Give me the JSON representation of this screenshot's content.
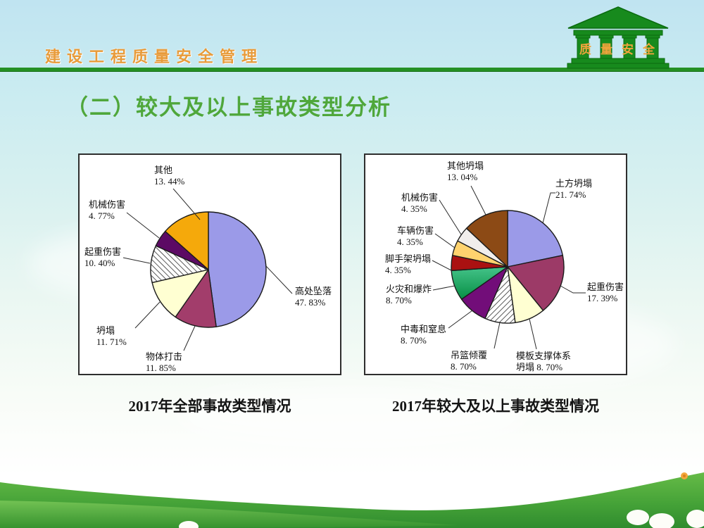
{
  "header": {
    "title": "建设工程质量安全管理",
    "logo": {
      "text": "质量安全"
    }
  },
  "slide": {
    "title": "（二）较大及以上事故类型分析"
  },
  "colors": {
    "header_text": "#e89b3a",
    "rule_green": "#259025",
    "title_green": "#4fa73b",
    "panel_border": "#2e2e2e",
    "sky_top": "#c0e4f1",
    "grass_green": "#46a338"
  },
  "chart_data": [
    {
      "type": "pie",
      "title": "2017年全部事故类型情况",
      "start_angle_deg": 0,
      "direction": "clockwise",
      "legend_position": "callout-labels",
      "center": [
        183,
        163
      ],
      "radius": 82,
      "slices": [
        {
          "label": "高处坠落",
          "value": 47.83,
          "pct_text": "47. 83%",
          "fill": "#9b9ae8",
          "label_pos": [
            306,
            186
          ],
          "line": [
            [
              264,
              157
            ],
            [
              302,
              197
            ]
          ]
        },
        {
          "label": "物体打击",
          "value": 11.85,
          "pct_text": "11. 85%",
          "fill": "#a23d6b",
          "label_pos": [
            94,
            279
          ],
          "line": [
            [
              164,
              243
            ],
            [
              148,
              278
            ]
          ]
        },
        {
          "label": "坍塌",
          "value": 11.71,
          "pct_text": "11. 71%",
          "fill": "#ffffd2",
          "label_pos": [
            24,
            242
          ],
          "line": [
            [
              114,
              209
            ],
            [
              79,
              246
            ]
          ]
        },
        {
          "label": "起重伤害",
          "value": 10.4,
          "pct_text": "10. 40%",
          "fill": "hatch-down",
          "label_pos": [
            7,
            130
          ],
          "line": [
            [
              100,
              154
            ],
            [
              62,
              146
            ]
          ]
        },
        {
          "label": "机械伤害",
          "value": 4.77,
          "pct_text": "4. 77%",
          "fill": "#5c0a64",
          "label_pos": [
            13,
            63
          ],
          "line": [
            [
              113,
              118
            ],
            [
              67,
              82
            ]
          ]
        },
        {
          "label": "其他",
          "value": 13.44,
          "pct_text": "13. 44%",
          "fill": "#f5a90b",
          "label_pos": [
            106,
            14
          ],
          "line": [
            [
              171,
              92
            ],
            [
              133,
              48
            ]
          ]
        }
      ]
    },
    {
      "type": "pie",
      "title": "2017年较大及以上事故类型情况",
      "start_angle_deg": 0,
      "direction": "clockwise",
      "legend_position": "callout-labels",
      "center": [
        202,
        159
      ],
      "radius": 80,
      "slices": [
        {
          "label": "土方坍塌",
          "value": 21.74,
          "pct_text": "21. 74%",
          "fill": "#9b9ae8",
          "label_pos": [
            270,
            33
          ],
          "line": [
            [
              252,
              97
            ],
            [
              263,
              54
            ],
            [
              270,
              54
            ]
          ]
        },
        {
          "label": "起重伤害",
          "value": 17.39,
          "pct_text": "17. 39%",
          "fill": "#9c3a67",
          "label_pos": [
            315,
            180
          ],
          "line": [
            [
              277,
              186
            ],
            [
              295,
              196
            ],
            [
              313,
              196
            ]
          ]
        },
        {
          "label": "模板支撑体系坍塌",
          "value": 8.7,
          "pct_text": "8. 70%",
          "label_lines": [
            "模板支撑体系",
            "坍塌 8. 70%"
          ],
          "fill": "#ffffd2",
          "label_pos": [
            214,
            278
          ],
          "line": [
            [
              233,
              233
            ],
            [
              243,
              276
            ]
          ]
        },
        {
          "label": "吊篮倾覆",
          "value": 8.7,
          "pct_text": "8. 70%",
          "fill": "hatch-up",
          "label_pos": [
            121,
            277
          ],
          "line": [
            [
              191,
              238
            ],
            [
              183,
              275
            ]
          ]
        },
        {
          "label": "中毒和窒息",
          "value": 8.7,
          "pct_text": "8. 70%",
          "fill": "#720d79",
          "label_pos": [
            50,
            240
          ],
          "line": [
            [
              152,
              221
            ],
            [
              118,
              246
            ]
          ]
        },
        {
          "label": "火灾和爆炸",
          "value": 8.7,
          "pct_text": "8. 70%",
          "fill": "green-grad",
          "label_pos": [
            29,
            183
          ],
          "line": [
            [
              127,
              186
            ],
            [
              96,
              192
            ]
          ]
        },
        {
          "label": "脚手架坍塌",
          "value": 4.35,
          "pct_text": "4. 35%",
          "fill": "#aa1111",
          "label_pos": [
            28,
            140
          ],
          "line": [
            [
              122,
              164
            ],
            [
              95,
              150
            ]
          ]
        },
        {
          "label": "车辆伤害",
          "value": 4.35,
          "pct_text": "4. 35%",
          "fill": "#ffd36e",
          "label_pos": [
            45,
            100
          ],
          "line": [
            [
              127,
              132
            ],
            [
              99,
              112
            ]
          ]
        },
        {
          "label": "机械伤害",
          "value": 4.35,
          "pct_text": "4. 35%",
          "fill": "#f1eeec",
          "label_pos": [
            51,
            53
          ],
          "line": [
            [
              136,
              113
            ],
            [
              105,
              64
            ]
          ]
        },
        {
          "label": "其他坍塌",
          "value": 13.04,
          "pct_text": "13. 04%",
          "fill": "#8c4a15",
          "label_pos": [
            116,
            8
          ],
          "line": [
            [
              171,
              85
            ],
            [
              150,
              44
            ]
          ]
        }
      ]
    }
  ]
}
